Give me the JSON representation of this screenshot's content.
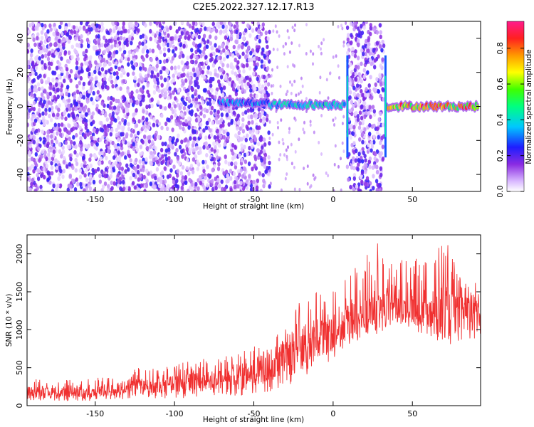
{
  "figure": {
    "title": "C2E5.2022.327.12.17.R13"
  },
  "chart_data": [
    {
      "type": "heatmap",
      "title": "C2E5.2022.327.12.17.R13",
      "xlabel": "Height of straight line (km)",
      "ylabel": "Frequency (Hz)",
      "xlim": [
        -193,
        93
      ],
      "ylim": [
        -50,
        50
      ],
      "xticks": [
        -150,
        -100,
        -50,
        0,
        50
      ],
      "yticks": [
        -40,
        -20,
        0,
        20,
        40
      ],
      "colorbar": {
        "label": "Normalized spectral amplitude",
        "range": [
          0.0,
          0.95
        ],
        "ticks": [
          0.0,
          0.2,
          0.4,
          0.6,
          0.8
        ],
        "colormap": "white-violet-blue-cyan-green-yellow-red-magenta"
      },
      "regions": [
        {
          "x_range": [
            -193,
            -40
          ],
          "description": "broadband speckle across all frequencies",
          "level": 0.1
        },
        {
          "x_range": [
            -72,
            -40
          ],
          "freq_center": 2,
          "level": 0.4
        },
        {
          "x_range": [
            -40,
            8
          ],
          "freq_center": 1,
          "level": 0.5
        },
        {
          "x_range": [
            9,
            32
          ],
          "description": "broadband speckle",
          "level": 0.1
        },
        {
          "x_range": [
            34,
            92
          ],
          "freq_center": 0,
          "level": 0.9
        }
      ],
      "grid": false
    },
    {
      "type": "line",
      "xlabel": "Height of straight line (km)",
      "ylabel": "SNR (10 * v/v)",
      "xlim": [
        -193,
        93
      ],
      "ylim": [
        0,
        2250
      ],
      "xticks": [
        -150,
        -100,
        -50,
        0,
        50
      ],
      "yticks": [
        0,
        500,
        1000,
        1500,
        2000
      ],
      "series": [
        {
          "color": "#f03030",
          "x": [
            -193,
            -180,
            -160,
            -140,
            -130,
            -127,
            -120,
            -100,
            -90,
            -80,
            -70,
            -60,
            -50,
            -45,
            -40,
            -30,
            -20,
            -10,
            0,
            10,
            20,
            30,
            40,
            50,
            60,
            70,
            80,
            92
          ],
          "y_low": [
            50,
            60,
            60,
            70,
            80,
            100,
            90,
            100,
            100,
            120,
            130,
            120,
            150,
            180,
            180,
            250,
            350,
            500,
            600,
            800,
            900,
            1000,
            1050,
            1000,
            900,
            800,
            800,
            850
          ],
          "y_high": [
            350,
            370,
            350,
            380,
            420,
            580,
            460,
            550,
            600,
            620,
            640,
            700,
            800,
            950,
            700,
            1400,
            1350,
            1500,
            1600,
            1700,
            2000,
            2250,
            2000,
            1950,
            1900,
            2250,
            1700,
            1650
          ],
          "y_mean": [
            170,
            180,
            180,
            200,
            230,
            300,
            250,
            280,
            300,
            320,
            340,
            360,
            420,
            500,
            450,
            650,
            700,
            850,
            950,
            1100,
            1180,
            1250,
            1300,
            1300,
            1250,
            1250,
            1200,
            1250
          ]
        }
      ],
      "grid": false
    }
  ]
}
